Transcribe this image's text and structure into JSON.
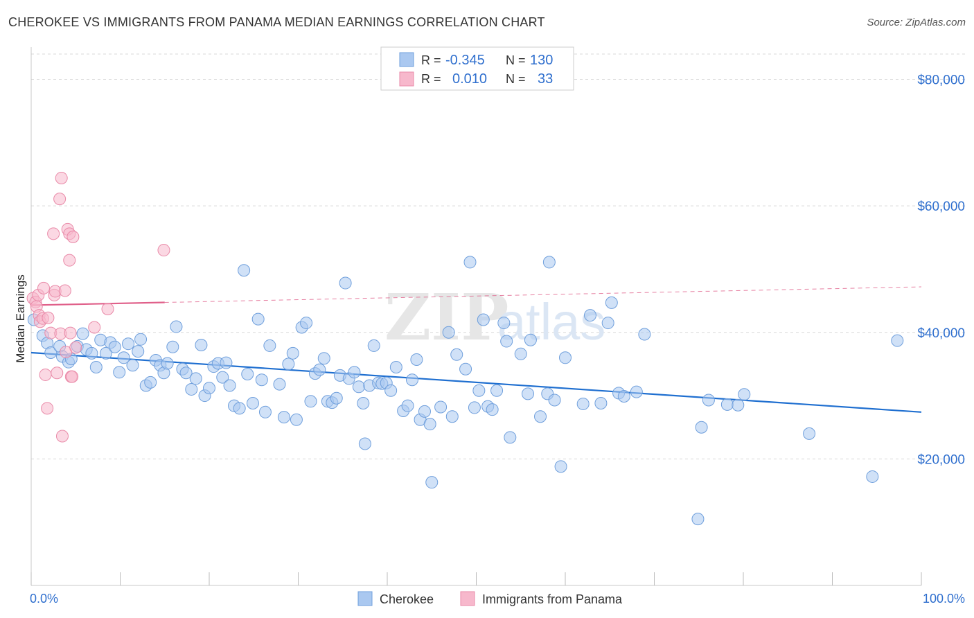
{
  "title": "CHEROKEE VS IMMIGRANTS FROM PANAMA MEDIAN EARNINGS CORRELATION CHART",
  "source": "Source: ZipAtlas.com",
  "watermark": {
    "zip": "ZIP",
    "atlas": "atlas"
  },
  "legend_top": {
    "rows": [
      {
        "r_label": "R =",
        "r_value": "-0.345",
        "n_label": "N =",
        "n_value": "130"
      },
      {
        "r_label": "R =",
        "r_value": "0.010",
        "n_label": "N =",
        "n_value": "33"
      }
    ]
  },
  "legend_bottom": {
    "items": [
      "Cherokee",
      "Immigrants from Panama"
    ]
  },
  "colors": {
    "blue_fill": "#aac8f0",
    "blue_stroke": "#6f9fdc",
    "blue_line": "#1f6fd0",
    "pink_fill": "#f7b8cc",
    "pink_stroke": "#e98aa8",
    "pink_line": "#e0608a",
    "value_text": "#2f6fce",
    "grid": "#d8d8d8"
  },
  "chart_data": {
    "type": "scatter",
    "title": "CHEROKEE VS IMMIGRANTS FROM PANAMA MEDIAN EARNINGS CORRELATION CHART",
    "xlabel": "",
    "ylabel": "Median Earnings",
    "xlim": [
      0,
      100
    ],
    "ylim": [
      0,
      84000
    ],
    "x_tick_labels": [
      "0.0%",
      "100.0%"
    ],
    "y_ticks": [
      20000,
      40000,
      60000,
      80000
    ],
    "y_tick_labels": [
      "$20,000",
      "$40,000",
      "$60,000",
      "$80,000"
    ],
    "grid": true,
    "legend_position": "top-center",
    "series": [
      {
        "name": "Cherokee",
        "r": -0.345,
        "n": 130,
        "trend": {
          "x": [
            0,
            100
          ],
          "y": [
            36800,
            27400
          ]
        },
        "points": [
          [
            0.3,
            42000
          ],
          [
            1.3,
            39500
          ],
          [
            1.8,
            38300
          ],
          [
            2.2,
            36800
          ],
          [
            3.2,
            37800
          ],
          [
            3.5,
            36200
          ],
          [
            4.2,
            35300
          ],
          [
            4.5,
            35800
          ],
          [
            5.2,
            37800
          ],
          [
            5.8,
            39800
          ],
          [
            6.2,
            37300
          ],
          [
            6.8,
            36700
          ],
          [
            7.3,
            34500
          ],
          [
            7.8,
            38800
          ],
          [
            8.4,
            36700
          ],
          [
            8.9,
            38400
          ],
          [
            9.4,
            37700
          ],
          [
            9.9,
            33700
          ],
          [
            10.4,
            36000
          ],
          [
            10.9,
            38200
          ],
          [
            11.4,
            34800
          ],
          [
            12.0,
            37000
          ],
          [
            12.3,
            38900
          ],
          [
            12.9,
            31600
          ],
          [
            13.4,
            32100
          ],
          [
            14.0,
            35600
          ],
          [
            14.5,
            34800
          ],
          [
            14.9,
            33600
          ],
          [
            15.3,
            35100
          ],
          [
            15.9,
            37700
          ],
          [
            16.3,
            40900
          ],
          [
            17.0,
            34200
          ],
          [
            17.4,
            33600
          ],
          [
            18.0,
            31000
          ],
          [
            18.5,
            32700
          ],
          [
            19.1,
            38000
          ],
          [
            19.5,
            30000
          ],
          [
            20.0,
            31200
          ],
          [
            20.5,
            34600
          ],
          [
            21.0,
            35100
          ],
          [
            21.5,
            32900
          ],
          [
            21.9,
            35200
          ],
          [
            22.3,
            31600
          ],
          [
            22.8,
            28400
          ],
          [
            23.4,
            28000
          ],
          [
            23.9,
            49800
          ],
          [
            24.3,
            33400
          ],
          [
            24.9,
            28800
          ],
          [
            25.5,
            42100
          ],
          [
            25.9,
            32500
          ],
          [
            26.3,
            27400
          ],
          [
            26.8,
            37900
          ],
          [
            27.9,
            31800
          ],
          [
            28.4,
            26600
          ],
          [
            28.9,
            35000
          ],
          [
            29.4,
            36700
          ],
          [
            29.8,
            26200
          ],
          [
            30.4,
            40800
          ],
          [
            30.9,
            41500
          ],
          [
            31.4,
            29100
          ],
          [
            31.9,
            33500
          ],
          [
            32.4,
            34100
          ],
          [
            32.9,
            35900
          ],
          [
            33.3,
            29100
          ],
          [
            33.8,
            28900
          ],
          [
            34.3,
            29600
          ],
          [
            34.7,
            33200
          ],
          [
            35.3,
            47800
          ],
          [
            35.7,
            32700
          ],
          [
            36.3,
            33700
          ],
          [
            36.8,
            31400
          ],
          [
            37.3,
            28800
          ],
          [
            37.5,
            22400
          ],
          [
            38.0,
            31600
          ],
          [
            38.5,
            37900
          ],
          [
            39.0,
            32000
          ],
          [
            39.4,
            31900
          ],
          [
            39.9,
            32000
          ],
          [
            40.4,
            30800
          ],
          [
            41.0,
            34500
          ],
          [
            41.8,
            27600
          ],
          [
            42.3,
            28400
          ],
          [
            42.8,
            32500
          ],
          [
            43.3,
            35700
          ],
          [
            43.7,
            26200
          ],
          [
            44.2,
            27500
          ],
          [
            44.8,
            25500
          ],
          [
            45.0,
            16300
          ],
          [
            46.0,
            28200
          ],
          [
            46.9,
            40000
          ],
          [
            47.3,
            26700
          ],
          [
            47.8,
            36500
          ],
          [
            48.8,
            34200
          ],
          [
            49.3,
            51100
          ],
          [
            49.8,
            28100
          ],
          [
            50.3,
            30800
          ],
          [
            50.8,
            42000
          ],
          [
            51.3,
            28300
          ],
          [
            51.8,
            27800
          ],
          [
            52.3,
            30800
          ],
          [
            53.1,
            41500
          ],
          [
            53.4,
            38600
          ],
          [
            53.8,
            23400
          ],
          [
            55.0,
            36600
          ],
          [
            55.8,
            30300
          ],
          [
            56.1,
            38800
          ],
          [
            57.2,
            26700
          ],
          [
            58.0,
            30300
          ],
          [
            58.2,
            51100
          ],
          [
            58.8,
            29300
          ],
          [
            59.5,
            18800
          ],
          [
            60.0,
            36000
          ],
          [
            62.0,
            28700
          ],
          [
            62.8,
            42700
          ],
          [
            64.0,
            28800
          ],
          [
            64.8,
            41500
          ],
          [
            65.2,
            44700
          ],
          [
            66.0,
            30400
          ],
          [
            66.6,
            29900
          ],
          [
            68.0,
            30600
          ],
          [
            68.9,
            39700
          ],
          [
            74.9,
            10500
          ],
          [
            75.3,
            25000
          ],
          [
            76.1,
            29300
          ],
          [
            78.2,
            28600
          ],
          [
            79.4,
            28500
          ],
          [
            80.1,
            30200
          ],
          [
            87.4,
            24000
          ],
          [
            94.5,
            17200
          ],
          [
            97.3,
            38700
          ]
        ]
      },
      {
        "name": "Immigrants from Panama",
        "r": 0.01,
        "n": 33,
        "trend": {
          "x": [
            0,
            100
          ],
          "y": [
            44300,
            47200
          ]
        },
        "trend_solid_until_x": 15,
        "points": [
          [
            0.2,
            45400
          ],
          [
            0.5,
            44800
          ],
          [
            0.6,
            44100
          ],
          [
            0.8,
            45900
          ],
          [
            0.9,
            42700
          ],
          [
            1.0,
            41700
          ],
          [
            1.3,
            42200
          ],
          [
            1.4,
            47000
          ],
          [
            1.6,
            33300
          ],
          [
            1.8,
            28000
          ],
          [
            1.9,
            42300
          ],
          [
            2.2,
            39900
          ],
          [
            2.5,
            55600
          ],
          [
            2.6,
            45900
          ],
          [
            2.7,
            46500
          ],
          [
            2.9,
            33600
          ],
          [
            3.2,
            61100
          ],
          [
            3.3,
            39800
          ],
          [
            3.4,
            64400
          ],
          [
            3.5,
            23600
          ],
          [
            3.8,
            46600
          ],
          [
            3.9,
            36900
          ],
          [
            4.1,
            56300
          ],
          [
            4.3,
            55600
          ],
          [
            4.3,
            51400
          ],
          [
            4.4,
            39900
          ],
          [
            4.5,
            33000
          ],
          [
            4.6,
            33000
          ],
          [
            4.7,
            55100
          ],
          [
            5.0,
            37600
          ],
          [
            7.1,
            40800
          ],
          [
            8.6,
            43700
          ],
          [
            14.9,
            53000
          ]
        ]
      }
    ]
  }
}
